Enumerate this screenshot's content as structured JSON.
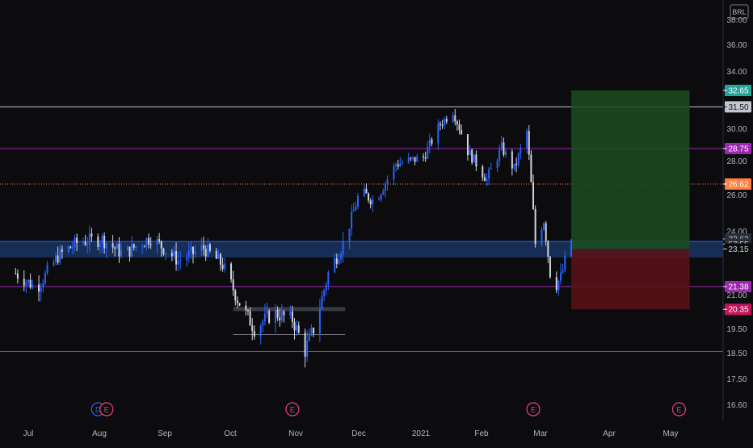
{
  "currency_badge": "BRL",
  "chart_data": {
    "type": "candlestick",
    "y_axis": {
      "ticks": [
        "16.60",
        "17.50",
        "18.50",
        "19.50",
        "21.00",
        "24.00",
        "26.00",
        "28.00",
        "30.00",
        "34.00",
        "36.00",
        "38.00"
      ],
      "range": [
        16.2,
        38.6
      ]
    },
    "x_axis": {
      "ticks": [
        "Jul",
        "Aug",
        "Sep",
        "Oct",
        "Nov",
        "Dec",
        "2021",
        "Feb",
        "Mar",
        "Apr",
        "May"
      ]
    },
    "price_tags": [
      {
        "label": "32.65",
        "value": 32.65,
        "color": "#26a69a",
        "text_color": "#ffffff"
      },
      {
        "label": "31.50",
        "value": 31.5,
        "color": "#c3c6ce",
        "text_color": "#131722"
      },
      {
        "label": "28.75",
        "value": 28.75,
        "color": "#9c27b0",
        "text_color": "#ffffff"
      },
      {
        "label": "26.62",
        "value": 26.62,
        "color": "#ff7f41",
        "text_color": "#ffffff"
      },
      {
        "label": "23.62",
        "value": 23.62,
        "color": "#2a2e39",
        "text_color": "#d1d4dc"
      },
      {
        "label": "57:55",
        "value": 23.38,
        "color": "#2a2e39",
        "text_color": "#d1d4dc"
      },
      {
        "label": "23.15",
        "value": 23.15,
        "color": "#0c0c0f",
        "text_color": "#d1d4dc"
      },
      {
        "label": "21.38",
        "value": 21.38,
        "color": "#9c27b0",
        "text_color": "#ffffff"
      },
      {
        "label": "20.35",
        "value": 20.35,
        "color": "#c2185b",
        "text_color": "#ffffff"
      }
    ],
    "horizontal_lines": [
      {
        "value": 31.5,
        "color": "#c3c6ce",
        "style": "solid"
      },
      {
        "value": 28.75,
        "color": "#9c27b0",
        "style": "solid"
      },
      {
        "value": 26.62,
        "color": "#ff7f41",
        "style": "dotted"
      },
      {
        "value": 21.38,
        "color": "#9c27b0",
        "style": "solid"
      },
      {
        "value": 18.55,
        "color": "#2962ff",
        "style": "solid"
      }
    ],
    "zone": {
      "from": 22.75,
      "to": 23.5,
      "color": "#1a3a6e"
    },
    "position": {
      "entry": 23.15,
      "target": 32.65,
      "stop": 20.35,
      "start_date": "2021-03-15",
      "end_date": "2021-05-10",
      "profit_color": "#1b4d1f",
      "loss_color": "#5c1318"
    },
    "events": [
      {
        "date": "2020-08-03",
        "label": "D",
        "color": "#2962ff"
      },
      {
        "date": "2020-08-07",
        "label": "E",
        "color": "#ec407a"
      },
      {
        "date": "2020-11-03",
        "label": "E",
        "color": "#ec407a"
      },
      {
        "date": "2021-02-25",
        "label": "E",
        "color": "#ec407a"
      },
      {
        "date": "2021-05-05",
        "label": "E",
        "color": "#ec407a"
      }
    ],
    "up_color": "#2962ff",
    "down_color": "#d1d4dc"
  }
}
